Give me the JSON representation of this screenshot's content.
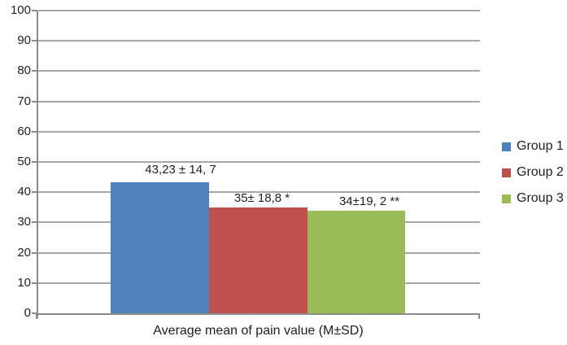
{
  "chart_data": {
    "type": "bar",
    "title": "",
    "xlabel": "Average mean of pain value (M±SD)",
    "ylabel": "",
    "ylim": [
      0,
      100
    ],
    "ytick_step": 10,
    "yticks": [
      0,
      10,
      20,
      30,
      40,
      50,
      60,
      70,
      80,
      90,
      100
    ],
    "grid": true,
    "legend_position": "right",
    "categories": [
      "Average mean of pain value (M±SD)"
    ],
    "series": [
      {
        "name": "Group 1",
        "value": 43.23,
        "data_label": "43,23 ± 14, 7",
        "color": "#4F81BD"
      },
      {
        "name": "Group 2",
        "value": 35,
        "data_label": "35± 18,8 *",
        "color": "#C0504D"
      },
      {
        "name": "Group 3",
        "value": 34,
        "data_label": "34±19, 2 **",
        "color": "#9BBB59"
      }
    ],
    "colors": {
      "axis": "#8C8C8C",
      "gridline": "#A6A6A6",
      "text": "#1F1F1F",
      "background": "#FFFFFF"
    }
  }
}
